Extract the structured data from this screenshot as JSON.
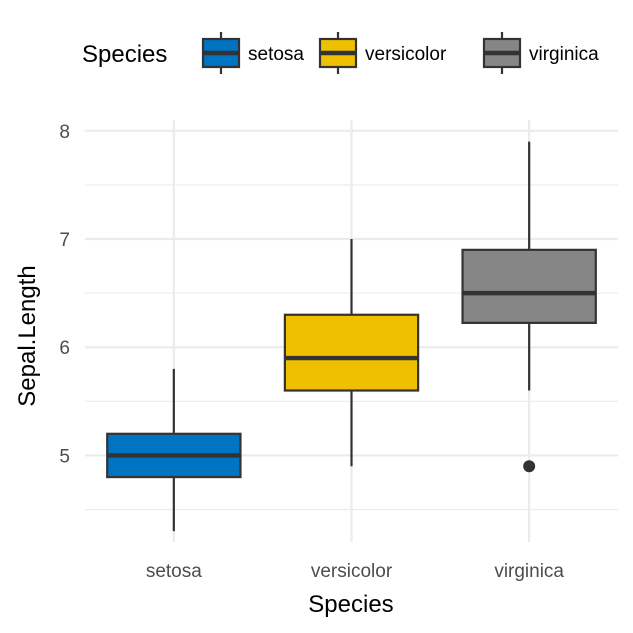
{
  "chart_data": {
    "type": "boxplot",
    "title": "",
    "xlabel": "Species",
    "ylabel": "Sepal.Length",
    "ylim": [
      4.2,
      8.1
    ],
    "yticks": [
      5,
      6,
      7,
      8
    ],
    "y_minor_ticks": [
      4.5,
      5.5,
      6.5,
      7.5
    ],
    "grid": true,
    "legend": {
      "title": "Species",
      "position": "top",
      "entries": [
        "setosa",
        "versicolor",
        "virginica"
      ]
    },
    "categories": [
      "setosa",
      "versicolor",
      "virginica"
    ],
    "series": [
      {
        "name": "setosa",
        "color": "#0073C2",
        "min": 4.3,
        "q1": 4.8,
        "median": 5.0,
        "q3": 5.2,
        "max": 5.8,
        "outliers": []
      },
      {
        "name": "versicolor",
        "color": "#EFC000",
        "min": 4.9,
        "q1": 5.6,
        "median": 5.9,
        "q3": 6.3,
        "max": 7.0,
        "outliers": []
      },
      {
        "name": "virginica",
        "color": "#868686",
        "min": 5.6,
        "q1": 6.225,
        "median": 6.5,
        "q3": 6.9,
        "max": 7.9,
        "outliers": [
          4.9
        ]
      }
    ]
  }
}
